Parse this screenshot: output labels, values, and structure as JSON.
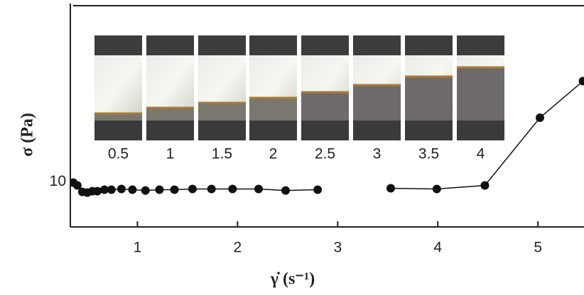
{
  "chart_data": {
    "type": "line",
    "x_label": "γ̇ (s⁻¹)",
    "y_label": "σ (Pa)",
    "x": [
      0.36,
      0.4,
      0.45,
      0.5,
      0.55,
      0.6,
      0.67,
      0.74,
      0.84,
      0.95,
      1.08,
      1.22,
      1.37,
      1.55,
      1.74,
      1.95,
      2.21,
      2.48,
      2.8,
      null,
      3.53,
      3.99,
      4.47,
      5.02,
      5.45
    ],
    "series": [
      {
        "color": "#111111",
        "values": [
          9.96,
          9.79,
          9.41,
          9.37,
          9.45,
          9.45,
          9.54,
          9.54,
          9.58,
          9.54,
          9.49,
          9.54,
          9.54,
          9.58,
          9.58,
          9.58,
          9.58,
          9.49,
          9.54,
          null,
          9.62,
          9.58,
          9.79,
          14.8,
          18.5
        ]
      }
    ],
    "xlim": [
      0.33,
      5.46
    ],
    "xticks": [
      1,
      2,
      3,
      4,
      5
    ],
    "ylim": [
      7.6,
      29.7
    ],
    "yticks": [
      10
    ],
    "log_y": true,
    "inset_labels": [
      "0.5",
      "1",
      "1.5",
      "2",
      "2.5",
      "3",
      "3.5",
      "4"
    ],
    "inset_boundaries": [
      160,
      152,
      145,
      138,
      130,
      120,
      108,
      95
    ]
  }
}
